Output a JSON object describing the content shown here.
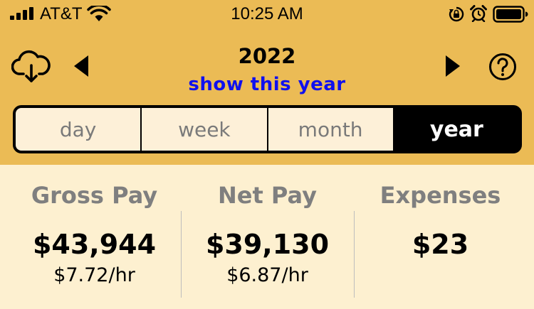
{
  "status_bar": {
    "carrier": "AT&T",
    "time": "10:25 AM",
    "icons": [
      "signal-icon",
      "wifi-icon",
      "orientation-lock-icon",
      "alarm-icon",
      "battery-icon"
    ]
  },
  "header": {
    "year": "2022",
    "show_this_year": "show this year",
    "icons": [
      "cloud-download-icon",
      "chevron-left-icon",
      "chevron-right-icon",
      "help-icon"
    ]
  },
  "period_tabs": {
    "items": [
      "day",
      "week",
      "month",
      "year"
    ],
    "selected": "year"
  },
  "summary": {
    "gross": {
      "title": "Gross Pay",
      "value": "$43,944",
      "rate": "$7.72/hr"
    },
    "net": {
      "title": "Net Pay",
      "value": "$39,130",
      "rate": "$6.87/hr"
    },
    "expenses": {
      "title": "Expenses",
      "value": "$23"
    }
  },
  "colors": {
    "header_bg": "#ebbb55",
    "body_bg": "#fdf0d0",
    "link": "#1010ee",
    "active_tab": "#000000"
  }
}
